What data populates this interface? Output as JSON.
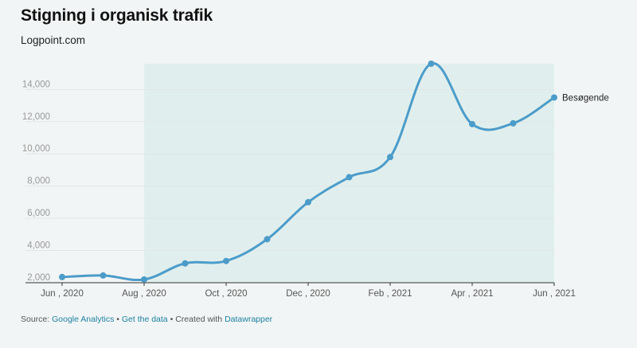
{
  "header": {
    "title": "Stigning i organisk trafik",
    "subtitle": "Logpoint.com"
  },
  "footer": {
    "source_label": "Source:",
    "source_link": "Google Analytics",
    "separator": "•",
    "data_link": "Get the data",
    "created_label": "Created with",
    "created_link": "Datawrapper"
  },
  "colors": {
    "line": "#4c9cc9",
    "highlight_band": "#e0efee",
    "gridline": "#e2e6e6",
    "axis_text": "#999999",
    "background": "#f2f5f5"
  },
  "chart_data": {
    "type": "line",
    "x_tick_labels": [
      "Jun , 2020",
      "Aug , 2020",
      "Oct , 2020",
      "Dec , 2020",
      "Feb , 2021",
      "Apr , 2021",
      "Jun , 2021"
    ],
    "y_tick_labels": [
      "2,000",
      "4,000",
      "6,000",
      "8,000",
      "10,000",
      "12,000",
      "14,000"
    ],
    "y_ticks": [
      2000,
      4000,
      6000,
      8000,
      10000,
      12000,
      14000
    ],
    "ylim": [
      2000,
      15600
    ],
    "xlim": [
      "2020-06",
      "2021-06"
    ],
    "grid": true,
    "highlight_range": [
      "2020-08",
      "2021-06"
    ],
    "series": [
      {
        "name": "Besøgende",
        "x": [
          "2020-06",
          "2020-07",
          "2020-08",
          "2020-09",
          "2020-10",
          "2020-11",
          "2020-12",
          "2021-01",
          "2021-02",
          "2021-03",
          "2021-04",
          "2021-05",
          "2021-06"
        ],
        "values": [
          2350,
          2450,
          2200,
          3200,
          3350,
          4700,
          7000,
          8550,
          9800,
          15600,
          11850,
          11900,
          13500
        ]
      }
    ]
  }
}
